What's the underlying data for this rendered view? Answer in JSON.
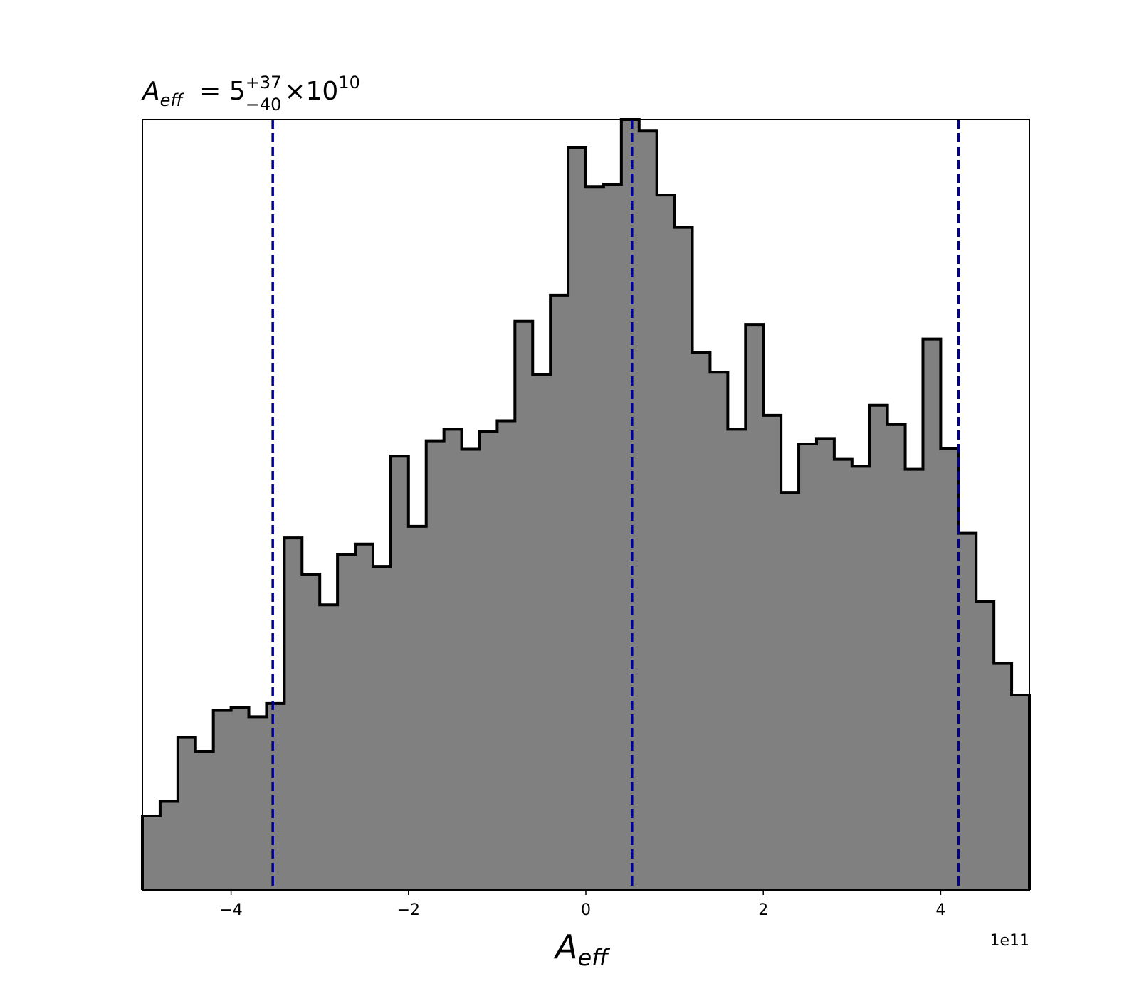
{
  "chart_data": {
    "type": "histogram",
    "title": {
      "symbol": "A",
      "symbol_sub": "eff",
      "equals": " = 5",
      "sup": "+37",
      "sub": "−40",
      "tail": "×10",
      "exp": "10"
    },
    "xlabel": {
      "symbol": "A",
      "sub": "eff"
    },
    "x_offset_label": "1e11",
    "xlim": [
      -5.0,
      5.0
    ],
    "ylim": [
      0,
      1000
    ],
    "xticks": [
      -4,
      -2,
      0,
      2,
      4
    ],
    "xtick_labels": [
      "−4",
      "−2",
      "0",
      "2",
      "4"
    ],
    "y_axis_hidden": true,
    "grid": false,
    "bin_edges": [
      -5.0,
      -4.8,
      -4.6,
      -4.4,
      -4.2,
      -4.0,
      -3.8,
      -3.6,
      -3.4,
      -3.2,
      -3.0,
      -2.8,
      -2.6,
      -2.4,
      -2.2,
      -2.0,
      -1.8,
      -1.6,
      -1.4,
      -1.2,
      -1.0,
      -0.8,
      -0.6,
      -0.4,
      -0.2,
      0.0,
      0.2,
      0.4,
      0.6,
      0.8,
      1.0,
      1.2,
      1.4,
      1.6,
      1.8,
      2.0,
      2.2,
      2.4,
      2.6,
      2.8,
      3.0,
      3.2,
      3.4,
      3.6,
      3.8,
      4.0,
      4.2,
      4.4,
      4.6,
      4.8,
      5.0
    ],
    "counts": [
      96,
      115,
      198,
      180,
      233,
      237,
      225,
      242,
      457,
      410,
      370,
      435,
      449,
      420,
      563,
      472,
      583,
      598,
      572,
      595,
      609,
      738,
      669,
      772,
      964,
      913,
      916,
      1000,
      985,
      902,
      860,
      698,
      672,
      598,
      734,
      616,
      516,
      579,
      586,
      559,
      550,
      629,
      604,
      546,
      715,
      573,
      463,
      374,
      294,
      253
    ],
    "fill_color": "#808080",
    "edge_color": "#000000",
    "vlines": [
      {
        "label": "lower",
        "x": -3.53
      },
      {
        "label": "median",
        "x": 0.52
      },
      {
        "label": "upper",
        "x": 4.2
      }
    ],
    "vline_color": "#00008b"
  }
}
